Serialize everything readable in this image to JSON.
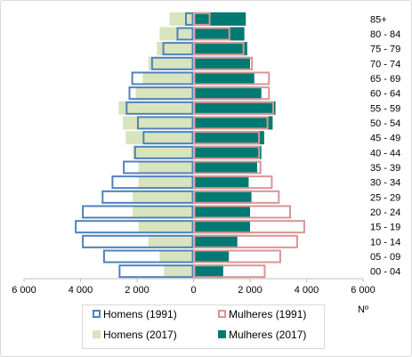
{
  "chart_data": {
    "type": "bar",
    "orientation": "horizontal-pyramid",
    "categories": [
      "00 - 04",
      "05 - 09",
      "10 - 14",
      "15 - 19",
      "20 - 24",
      "25 - 29",
      "30 - 34",
      "35 - 39",
      "40 - 44",
      "45 - 49",
      "50 - 54",
      "55 - 59",
      "60 - 64",
      "65 - 69",
      "70 - 74",
      "75 - 79",
      "80 - 84",
      "85+"
    ],
    "series": [
      {
        "name": "Homens (1991)",
        "side": "left",
        "style": "outline",
        "color": "#4f81bd",
        "values": [
          2650,
          3200,
          3950,
          4200,
          3950,
          3250,
          2900,
          2500,
          2100,
          1800,
          2000,
          2400,
          2300,
          2200,
          1500,
          1100,
          600,
          300
        ]
      },
      {
        "name": "Mulheres (1991)",
        "side": "right",
        "style": "outline",
        "color": "#d99594",
        "values": [
          2550,
          3100,
          3700,
          3950,
          3450,
          3050,
          2800,
          2400,
          2350,
          2350,
          2650,
          2850,
          2700,
          2700,
          2100,
          1800,
          1300,
          600
        ]
      },
      {
        "name": "Homens (2017)",
        "side": "left",
        "style": "fill",
        "color": "#d7e4bd",
        "values": [
          1050,
          1200,
          1600,
          1950,
          2150,
          2150,
          1950,
          1950,
          2150,
          2400,
          2500,
          2650,
          2050,
          1800,
          1600,
          1300,
          1200,
          850
        ]
      },
      {
        "name": "Mulheres (2017)",
        "side": "right",
        "style": "fill",
        "color": "#007a72",
        "values": [
          1050,
          1250,
          1550,
          2000,
          2000,
          2050,
          1950,
          2250,
          2400,
          2500,
          2800,
          2900,
          2400,
          2150,
          2000,
          1900,
          1800,
          1850
        ]
      }
    ],
    "x_ticks": [
      "6 000",
      "4 000",
      "2 000",
      "0",
      "2 000",
      "4 000",
      "6 000"
    ],
    "x_tick_values": [
      -6000,
      -4000,
      -2000,
      0,
      2000,
      4000,
      6000
    ],
    "xlim": [
      -6000,
      6000
    ],
    "xlabel": "Nº",
    "ylabel": "",
    "title": "",
    "grid": false,
    "legend_position": "bottom"
  }
}
